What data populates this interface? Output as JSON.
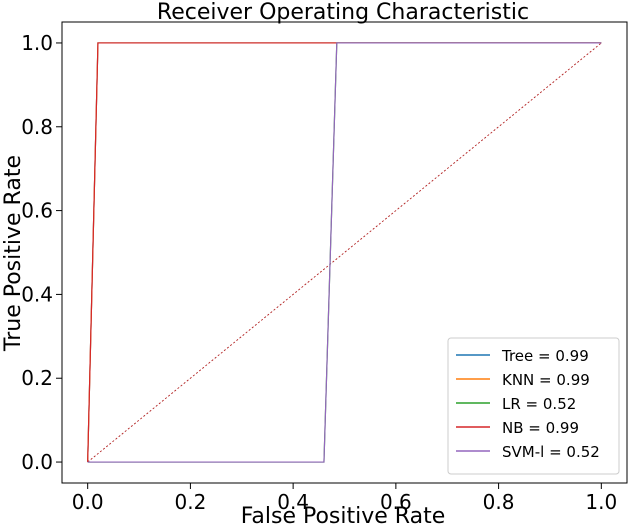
{
  "chart_data": {
    "type": "line",
    "title": "Receiver Operating Characteristic",
    "xlabel": "False Positive Rate",
    "ylabel": "True Positive Rate",
    "xlim": [
      -0.05,
      1.05
    ],
    "ylim": [
      -0.05,
      1.05
    ],
    "xticks": [
      "0.0",
      "0.2",
      "0.4",
      "0.6",
      "0.8",
      "1.0"
    ],
    "yticks": [
      "0.0",
      "0.2",
      "0.4",
      "0.6",
      "0.8",
      "1.0"
    ],
    "xtick_values": [
      0,
      0.2,
      0.4,
      0.6,
      0.8,
      1.0
    ],
    "ytick_values": [
      0,
      0.2,
      0.4,
      0.6,
      0.8,
      1.0
    ],
    "grid": false,
    "legend_position": "lower-right",
    "series": [
      {
        "name": "Tree = 0.99",
        "color": "#1f77b4",
        "x": [
          0,
          0.02,
          1.0
        ],
        "y": [
          0,
          1,
          1
        ]
      },
      {
        "name": "KNN = 0.99",
        "color": "#ff7f0e",
        "x": [
          0,
          0.02,
          1.0
        ],
        "y": [
          0,
          1,
          1
        ]
      },
      {
        "name": "LR = 0.52",
        "color": "#2ca02c",
        "x": [
          0,
          0.46,
          0.485,
          1.0
        ],
        "y": [
          0,
          0,
          1,
          1
        ]
      },
      {
        "name": "NB = 0.99",
        "color": "#d62728",
        "x": [
          0,
          0.02,
          1.0
        ],
        "y": [
          0,
          1,
          1
        ]
      },
      {
        "name": "SVM-l = 0.52",
        "color": "#9467bd",
        "x": [
          0,
          0.46,
          0.485,
          1.0
        ],
        "y": [
          0,
          0,
          1,
          1
        ]
      }
    ],
    "reference_line": {
      "color": "#b22222",
      "style": "dashed",
      "x": [
        0,
        1
      ],
      "y": [
        0,
        1
      ]
    }
  }
}
